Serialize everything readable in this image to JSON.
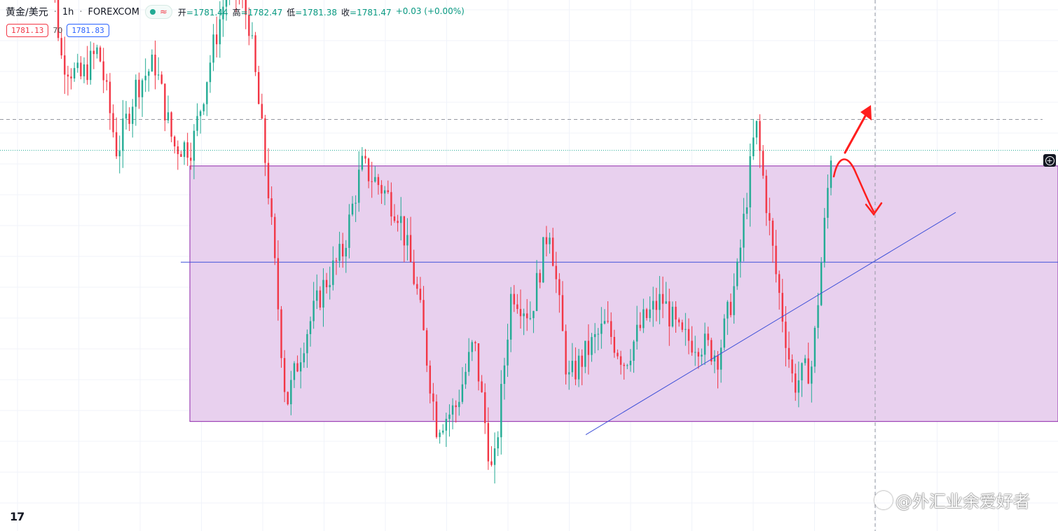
{
  "header": {
    "symbol": "黄金/美元",
    "interval": "1h",
    "exchange": "FOREXCOM",
    "approx_icon": "≈",
    "ohlc": {
      "open_label": "开",
      "open": "1781.44",
      "high_label": "高",
      "high": "1782.47",
      "low_label": "低",
      "low": "1781.38",
      "close_label": "收",
      "close": "1781.47",
      "change": "+0.03 (+0.00%)"
    },
    "bid": "1781.13",
    "spread": "70",
    "ask": "1781.83"
  },
  "watermark": "@外汇业余爱好者",
  "tv_logo": "17",
  "colors": {
    "up": "#22ab94",
    "down": "#f23645",
    "zone_fill": "#e8d0ee",
    "zone_border": "#8e24aa",
    "blue_line": "#3f51d8",
    "annotation": "#ff1e1e"
  },
  "chart_data": {
    "type": "candlestick",
    "title": "",
    "xlabel": "",
    "ylabel": "",
    "ylim": [
      1770.0,
      1786.0
    ],
    "series": [
      {
        "name": "",
        "close": [
          1790.0,
          1784.3,
          1783.6,
          1784.5,
          1781.4,
          1783.4,
          1784.1,
          1781.6,
          1781.6,
          1784.3,
          1786.7,
          1785.4,
          1780.6,
          1773.8,
          1775.9,
          1777.4,
          1778.4,
          1781.0,
          1780.4,
          1779.6,
          1777.1,
          1773.2,
          1773.7,
          1775.7,
          1771.5,
          1777.3,
          1776.5,
          1779.3,
          1774.5,
          1775.4,
          1776.2,
          1775.1,
          1776.3,
          1777.0,
          1775.8,
          1775.7,
          1775.3,
          1777.7,
          1782.3,
          1778.0,
          1774.4,
          1775.0,
          1781.4
        ]
      }
    ],
    "horizontal_lines": [
      {
        "kind": "price-dashed",
        "value": 1782.4
      },
      {
        "kind": "last-dotted",
        "value": 1781.47
      },
      {
        "kind": "zone-mid",
        "value": 1778.1
      }
    ],
    "zone": {
      "top": 1781.0,
      "bottom": 1773.3
    },
    "trendline": {
      "from": 1772.9,
      "to": 1779.6
    }
  }
}
